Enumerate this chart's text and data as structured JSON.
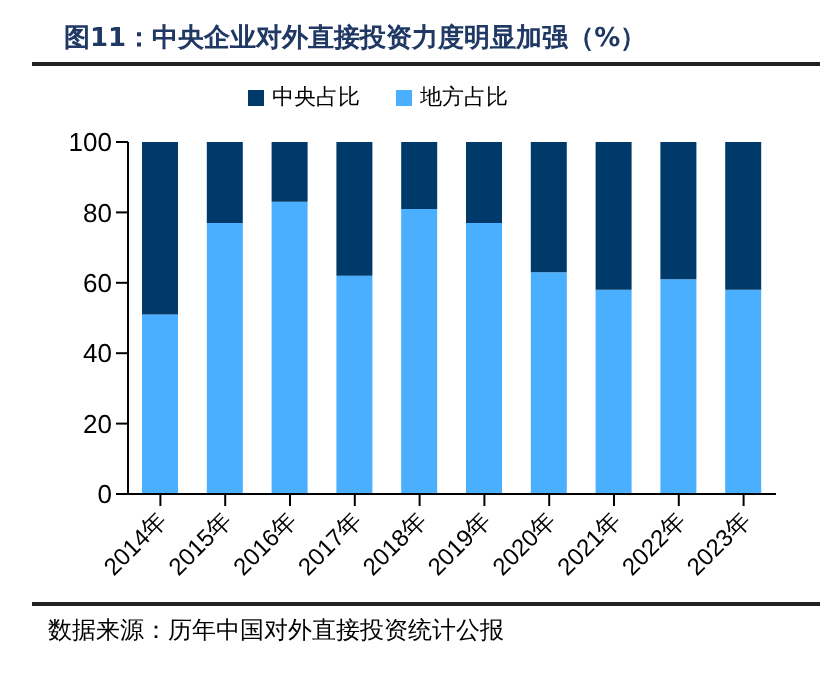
{
  "chart_data": {
    "type": "bar",
    "title": "图11：中央企业对外直接投资力度明显加强（%）",
    "categories": [
      "2014年",
      "2015年",
      "2016年",
      "2017年",
      "2018年",
      "2019年",
      "2020年",
      "2021年",
      "2022年",
      "2023年"
    ],
    "series": [
      {
        "name": "地方占比",
        "color": "#4bafff",
        "values": [
          51,
          77,
          83,
          62,
          81,
          77,
          63,
          58,
          61,
          58
        ]
      },
      {
        "name": "中央占比",
        "color": "#003a6b",
        "values": [
          49,
          23,
          17,
          38,
          19,
          23,
          37,
          42,
          39,
          42
        ]
      }
    ],
    "stacked": true,
    "ylim": [
      0,
      100
    ],
    "yticks": [
      0,
      20,
      40,
      60,
      80,
      100
    ],
    "grid": false,
    "legend": "top",
    "annotations": [
      "数据来源：历年中国对外直接投资统计公报"
    ]
  }
}
